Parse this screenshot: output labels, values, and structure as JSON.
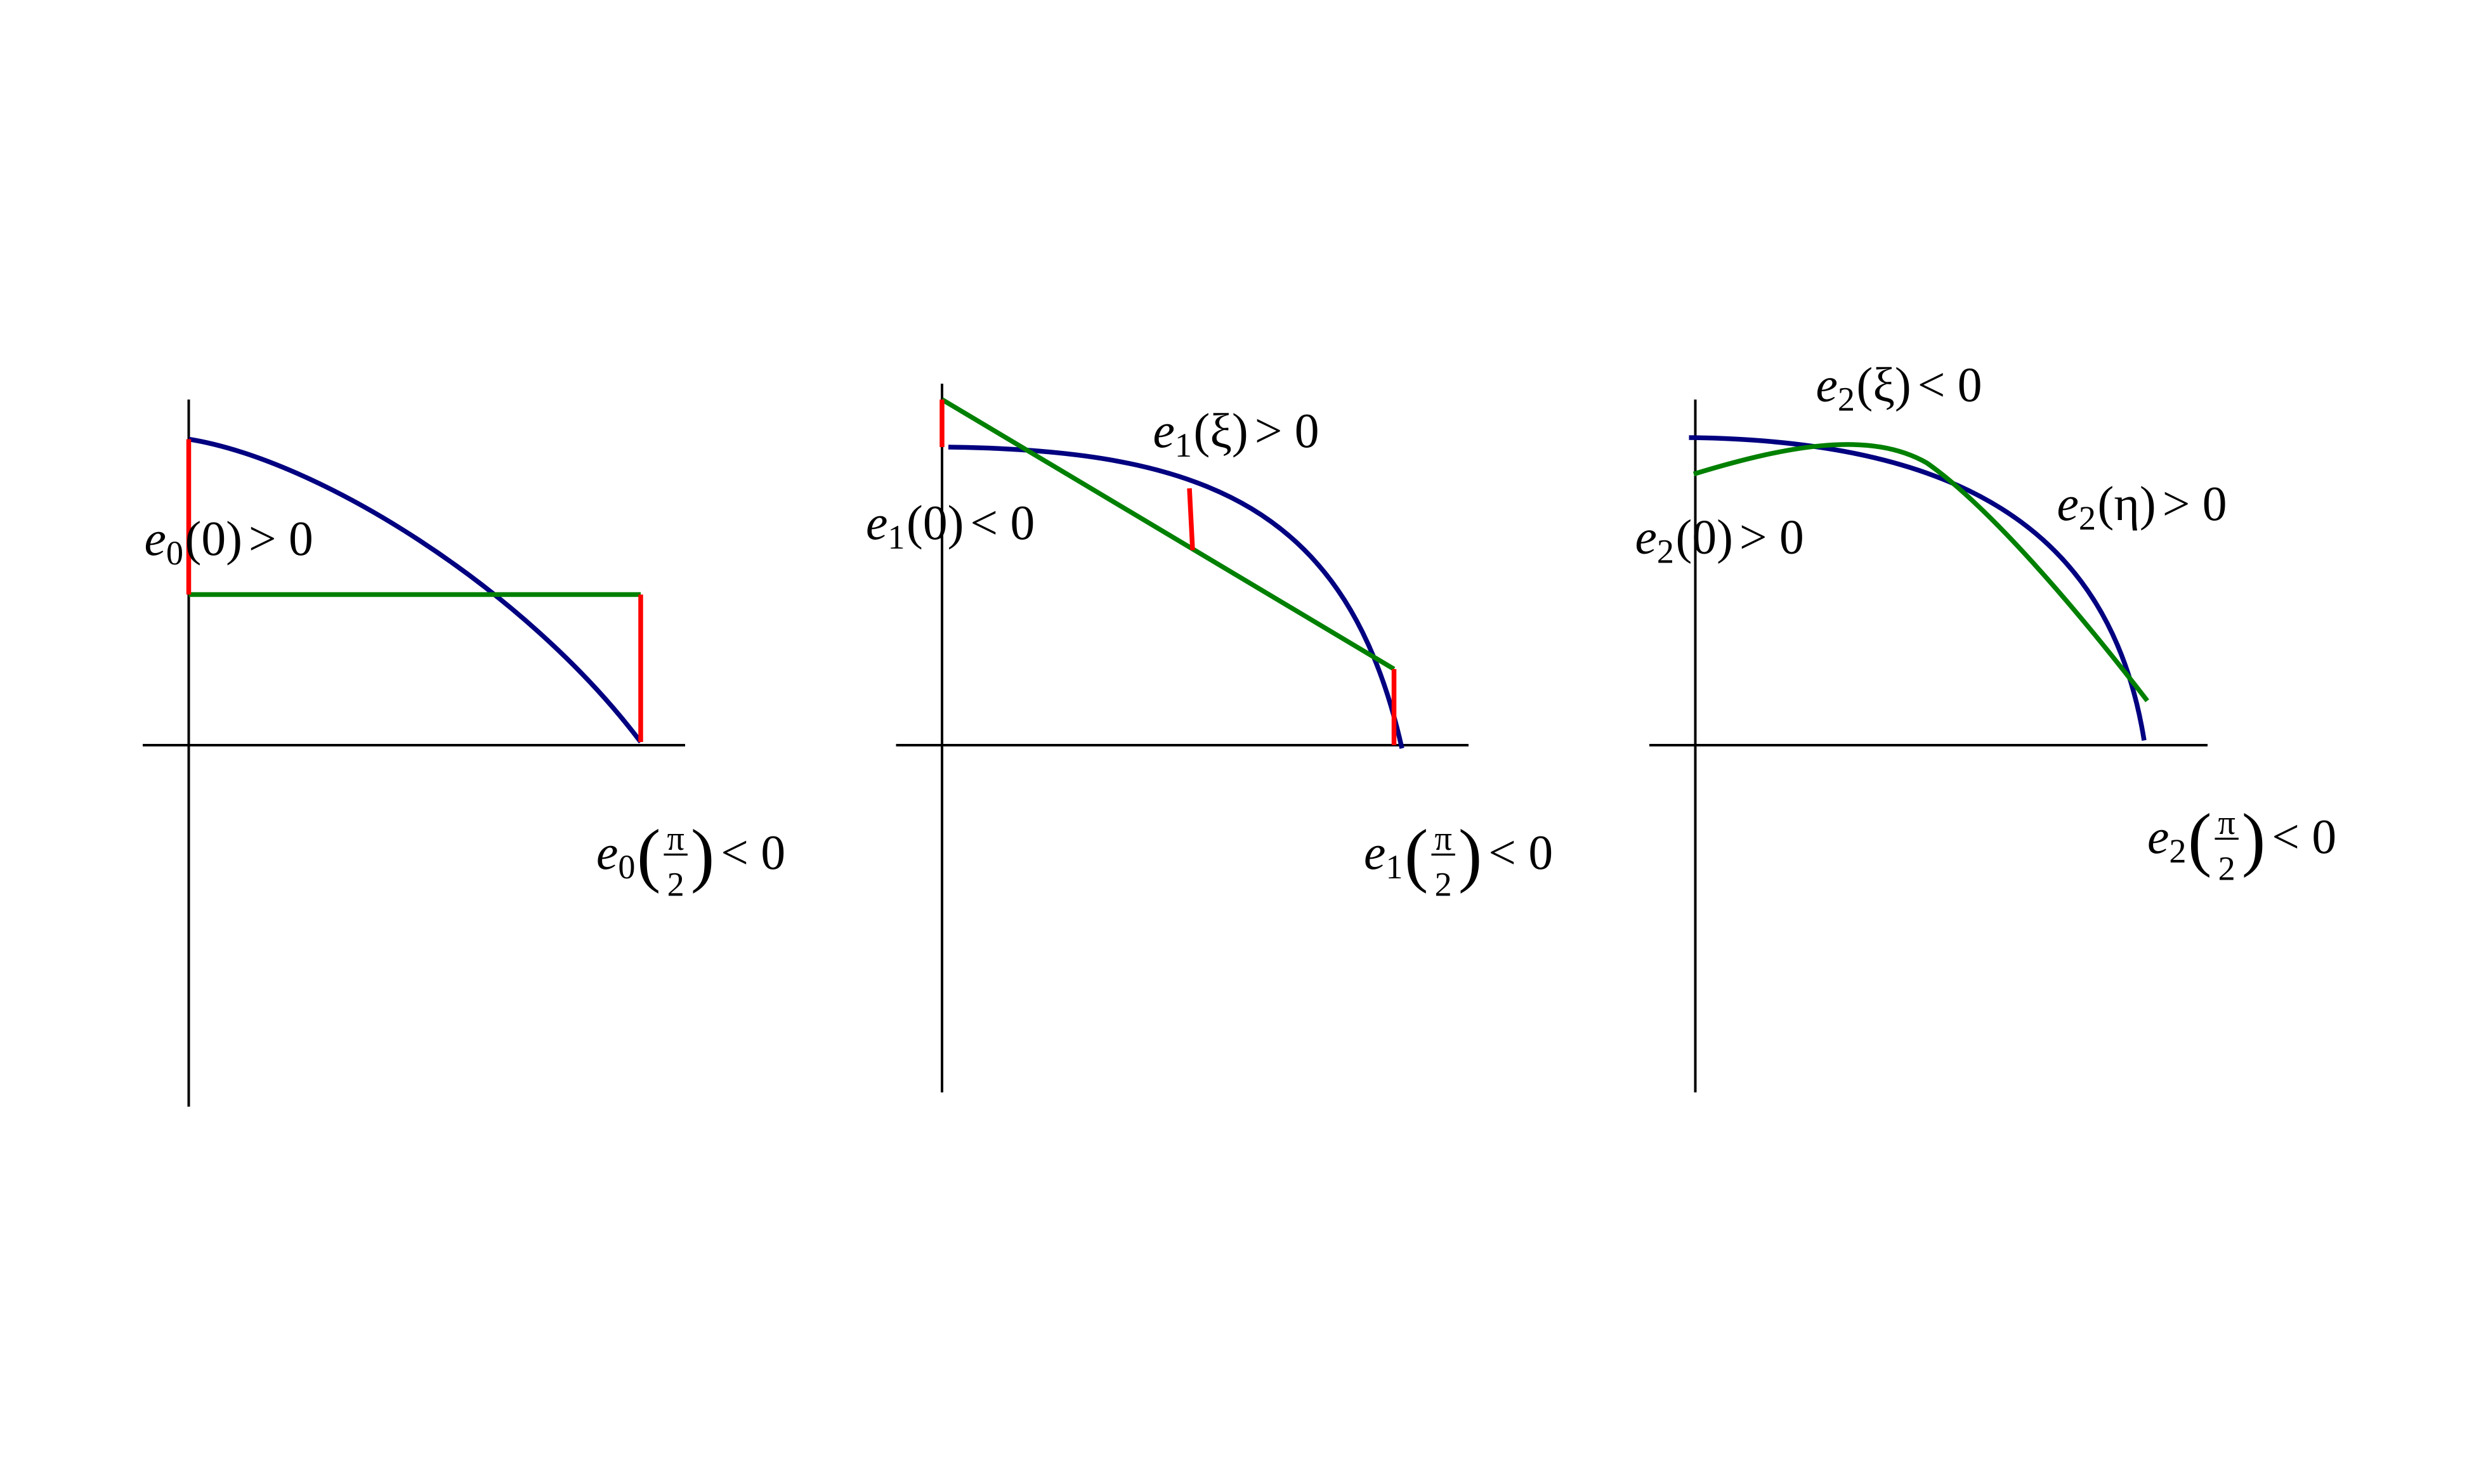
{
  "panels": [
    {
      "labels": [
        {
          "fn": "e",
          "sub": "0",
          "arg": "(0)",
          "rel": "> 0"
        },
        {
          "fn": "e",
          "sub": "0",
          "open": "(",
          "num": "π",
          "den": "2",
          "close": ")",
          "rel": "< 0"
        }
      ]
    },
    {
      "labels": [
        {
          "fn": "e",
          "sub": "1",
          "arg": "(ξ)",
          "rel": "> 0"
        },
        {
          "fn": "e",
          "sub": "1",
          "arg": "(0)",
          "rel": "< 0"
        },
        {
          "fn": "e",
          "sub": "1",
          "open": "(",
          "num": "π",
          "den": "2",
          "close": ")",
          "rel": "< 0"
        }
      ]
    },
    {
      "labels": [
        {
          "fn": "e",
          "sub": "2",
          "arg": "(ξ)",
          "rel": "< 0"
        },
        {
          "fn": "e",
          "sub": "2",
          "arg": "(η)",
          "rel": "> 0"
        },
        {
          "fn": "e",
          "sub": "2",
          "arg": "(0)",
          "rel": "> 0"
        },
        {
          "fn": "e",
          "sub": "2",
          "open": "(",
          "num": "π",
          "den": "2",
          "close": ")",
          "rel": "< 0"
        }
      ]
    }
  ]
}
